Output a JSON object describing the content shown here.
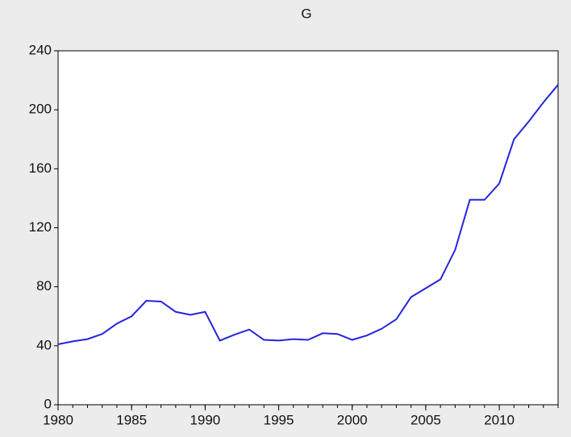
{
  "chart_data": {
    "type": "line",
    "title": "G",
    "x": [
      1980,
      1981,
      1982,
      1983,
      1984,
      1985,
      1986,
      1987,
      1988,
      1989,
      1990,
      1991,
      1992,
      1993,
      1994,
      1995,
      1996,
      1997,
      1998,
      1999,
      2000,
      2001,
      2002,
      2003,
      2004,
      2005,
      2006,
      2007,
      2008,
      2009,
      2010,
      2011,
      2012,
      2013,
      2014
    ],
    "series": [
      {
        "name": "G",
        "color": "#2424e0",
        "values": [
          41,
          43,
          44.5,
          48,
          55,
          60,
          70.5,
          70,
          63,
          61,
          63,
          43.5,
          47.5,
          51,
          44,
          43.5,
          44.5,
          44,
          48.5,
          48,
          44,
          47,
          51.5,
          58,
          73,
          79,
          85,
          105,
          139,
          139,
          150,
          180,
          192,
          205,
          217
        ]
      }
    ],
    "xlim": [
      1980,
      2014
    ],
    "xticks": [
      1980,
      1985,
      1990,
      1995,
      2000,
      2005,
      2010
    ],
    "ylim": [
      0,
      240
    ],
    "yticks": [
      0,
      40,
      80,
      120,
      160,
      200,
      240
    ],
    "grid": false
  }
}
